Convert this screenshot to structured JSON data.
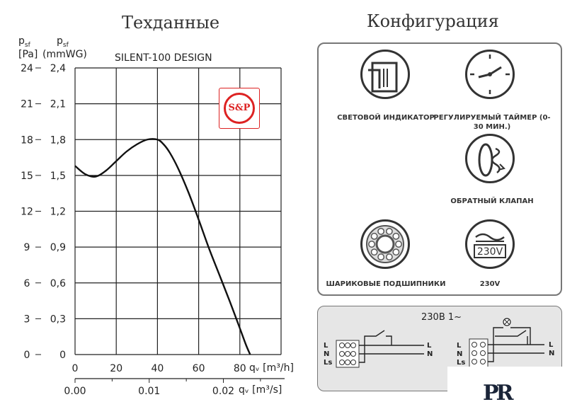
{
  "headings": {
    "tech": "Техданные",
    "config": "Конфигурация"
  },
  "chart_data": {
    "type": "line",
    "title": "SILENT-100 DESIGN",
    "y_left_label": [
      "p",
      "sf",
      "[Pa]"
    ],
    "y_right_label": [
      "p",
      "sf",
      "(mmWG)"
    ],
    "x_label_top": "qᵥ [m³/h]",
    "x_label_bottom": "qᵥ [m³/s]",
    "y_pa_ticks": [
      "24",
      "21",
      "18",
      "15",
      "12",
      "9",
      "6",
      "3",
      "0"
    ],
    "y_mmwg_ticks": [
      "2,4",
      "2,1",
      "1,8",
      "1,5",
      "1,2",
      "0,9",
      "0,6",
      "0,3",
      "0"
    ],
    "x_m3h_ticks": [
      "0",
      "20",
      "40",
      "60",
      "80"
    ],
    "x_m3s_ticks": [
      "0.00",
      "0.01",
      "0.02"
    ],
    "xlim_m3h": [
      0,
      100
    ],
    "ylim_pa": [
      0,
      24
    ],
    "grid": true,
    "series": [
      {
        "x_m3h": [
          0,
          5,
          10,
          15,
          20,
          25,
          30,
          35,
          40,
          43,
          46,
          50,
          55,
          60,
          65,
          70,
          75,
          80,
          83,
          85
        ],
        "y_pa": [
          15.8,
          15.1,
          14.9,
          15.4,
          16.2,
          17.0,
          17.6,
          18.0,
          18.0,
          17.6,
          16.9,
          15.6,
          13.6,
          11.3,
          8.9,
          6.7,
          4.5,
          2.2,
          0.8,
          0.0
        ]
      }
    ]
  },
  "logo": {
    "text": "S&P"
  },
  "config": {
    "items": [
      {
        "label": "СВЕТОВОЙ ИНДИКАТОР",
        "icon": "light-indicator-icon"
      },
      {
        "label": "РЕГУЛИРУЕМЫЙ ТАЙМЕР (0-30 МИН.)",
        "icon": "timer-icon"
      },
      {
        "label": "ОБРАТНЫЙ КЛАПАН",
        "icon": "check-valve-icon"
      },
      {
        "label": "ШАРИКОВЫЕ ПОДШИПНИКИ",
        "icon": "ball-bearing-icon"
      },
      {
        "label": "230V",
        "icon": "voltage-icon",
        "icon_text": "230V"
      }
    ]
  },
  "wiring": {
    "title": "230В 1~",
    "left": {
      "terminals": [
        "L",
        "N",
        "Ls"
      ],
      "line_labels": [
        "L",
        "N"
      ]
    },
    "right": {
      "terminals": [
        "L",
        "N",
        "Ls"
      ],
      "line_labels": [
        "L",
        "N"
      ]
    }
  },
  "watermark": {
    "text": "PR"
  },
  "colors": {
    "panel_bg": "#e6e6e6",
    "panel_border": "#777777",
    "ink": "#222222"
  }
}
